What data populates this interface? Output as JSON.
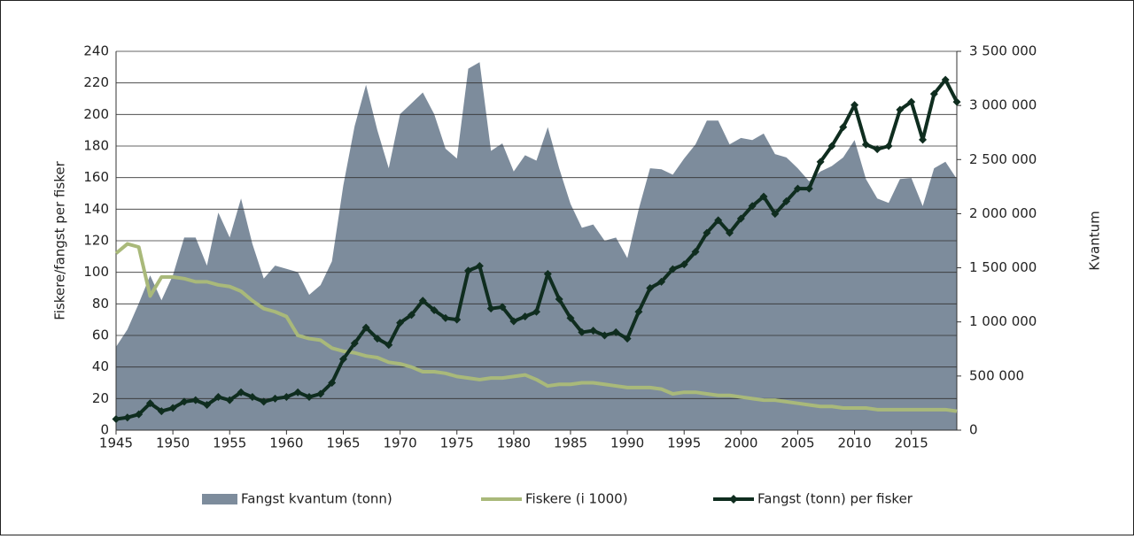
{
  "chart_data": {
    "type": "line",
    "ylabel": "Fiskere/fangst per fisker",
    "y2label": "Kvantum",
    "x": [
      1945,
      1946,
      1947,
      1948,
      1949,
      1950,
      1951,
      1952,
      1953,
      1954,
      1955,
      1956,
      1957,
      1958,
      1959,
      1960,
      1961,
      1962,
      1963,
      1964,
      1965,
      1966,
      1967,
      1968,
      1969,
      1970,
      1971,
      1972,
      1973,
      1974,
      1975,
      1976,
      1977,
      1978,
      1979,
      1980,
      1981,
      1982,
      1983,
      1984,
      1985,
      1986,
      1987,
      1988,
      1989,
      1990,
      1991,
      1992,
      1993,
      1994,
      1995,
      1996,
      1997,
      1998,
      1999,
      2000,
      2001,
      2002,
      2003,
      2004,
      2005,
      2006,
      2007,
      2008,
      2009,
      2010,
      2011,
      2012,
      2013,
      2014,
      2015,
      2016,
      2017,
      2018,
      2019
    ],
    "xlim": [
      1945,
      2019
    ],
    "xticks": [
      1945,
      1950,
      1955,
      1960,
      1965,
      1970,
      1975,
      1980,
      1985,
      1990,
      1995,
      2000,
      2005,
      2010,
      2015
    ],
    "ylim": [
      0,
      240
    ],
    "yticks": [
      0,
      20,
      40,
      60,
      80,
      100,
      120,
      140,
      160,
      180,
      200,
      220,
      240
    ],
    "y2lim": [
      0,
      3500000
    ],
    "y2ticks": [
      0,
      {
        "value": 500000,
        "label": "500 000"
      },
      {
        "value": 1000000,
        "label": "1 000 000"
      },
      {
        "value": 1500000,
        "label": "1 500 000"
      },
      {
        "value": 2000000,
        "label": "2 000 000"
      },
      {
        "value": 2500000,
        "label": "2 500 000"
      },
      {
        "value": 3000000,
        "label": "3 000 000"
      },
      {
        "value": 3500000,
        "label": "3 500 000"
      }
    ],
    "grid": true,
    "legend": "bottom",
    "series": [
      {
        "name": "Fangst kvantum (tonn)",
        "kind": "area",
        "axis": "y2",
        "color": "#7d8c9c",
        "values": [
          770000,
          930000,
          1170000,
          1430000,
          1200000,
          1430000,
          1780000,
          1780000,
          1520000,
          2010000,
          1780000,
          2140000,
          1720000,
          1400000,
          1520000,
          1490000,
          1460000,
          1250000,
          1340000,
          1560000,
          2260000,
          2810000,
          3190000,
          2770000,
          2420000,
          2920000,
          3020000,
          3120000,
          2920000,
          2600000,
          2510000,
          3340000,
          3400000,
          2580000,
          2650000,
          2390000,
          2540000,
          2490000,
          2800000,
          2420000,
          2090000,
          1870000,
          1900000,
          1750000,
          1780000,
          1590000,
          2040000,
          2420000,
          2410000,
          2360000,
          2510000,
          2640000,
          2860000,
          2860000,
          2640000,
          2700000,
          2680000,
          2740000,
          2550000,
          2520000,
          2420000,
          2300000,
          2390000,
          2440000,
          2520000,
          2680000,
          2320000,
          2140000,
          2100000,
          2320000,
          2330000,
          2070000,
          2420000,
          2480000,
          2320000
        ]
      },
      {
        "name": "Fiskere (i 1000)",
        "kind": "line",
        "color": "#a9b97a",
        "values": [
          112,
          118,
          116,
          85,
          97,
          97,
          96,
          94,
          94,
          92,
          91,
          88,
          82,
          77,
          75,
          72,
          60,
          58,
          57,
          52,
          50,
          49,
          47,
          46,
          43,
          42,
          40,
          37,
          37,
          36,
          34,
          33,
          32,
          33,
          33,
          34,
          35,
          32,
          28,
          29,
          29,
          30,
          30,
          29,
          28,
          27,
          27,
          27,
          26,
          23,
          24,
          24,
          23,
          22,
          22,
          21,
          20,
          19,
          19,
          18,
          17,
          16,
          15,
          15,
          14,
          14,
          14,
          13,
          13,
          13,
          13,
          13,
          13,
          13,
          12
        ]
      },
      {
        "name": "Fangst (tonn) per fisker",
        "kind": "marker-line",
        "color": "#0f2d1f",
        "values": [
          7,
          8,
          10,
          17,
          12,
          14,
          18,
          19,
          16,
          21,
          19,
          24,
          21,
          18,
          20,
          21,
          24,
          21,
          23,
          30,
          45,
          55,
          65,
          58,
          54,
          68,
          73,
          82,
          76,
          71,
          70,
          101,
          104,
          77,
          78,
          69,
          72,
          75,
          99,
          83,
          71,
          62,
          63,
          60,
          62,
          58,
          75,
          90,
          94,
          102,
          105,
          113,
          125,
          133,
          125,
          134,
          142,
          148,
          137,
          145,
          153,
          153,
          170,
          180,
          192,
          206,
          181,
          178,
          180,
          203,
          208,
          184,
          213,
          222,
          208
        ]
      }
    ]
  }
}
